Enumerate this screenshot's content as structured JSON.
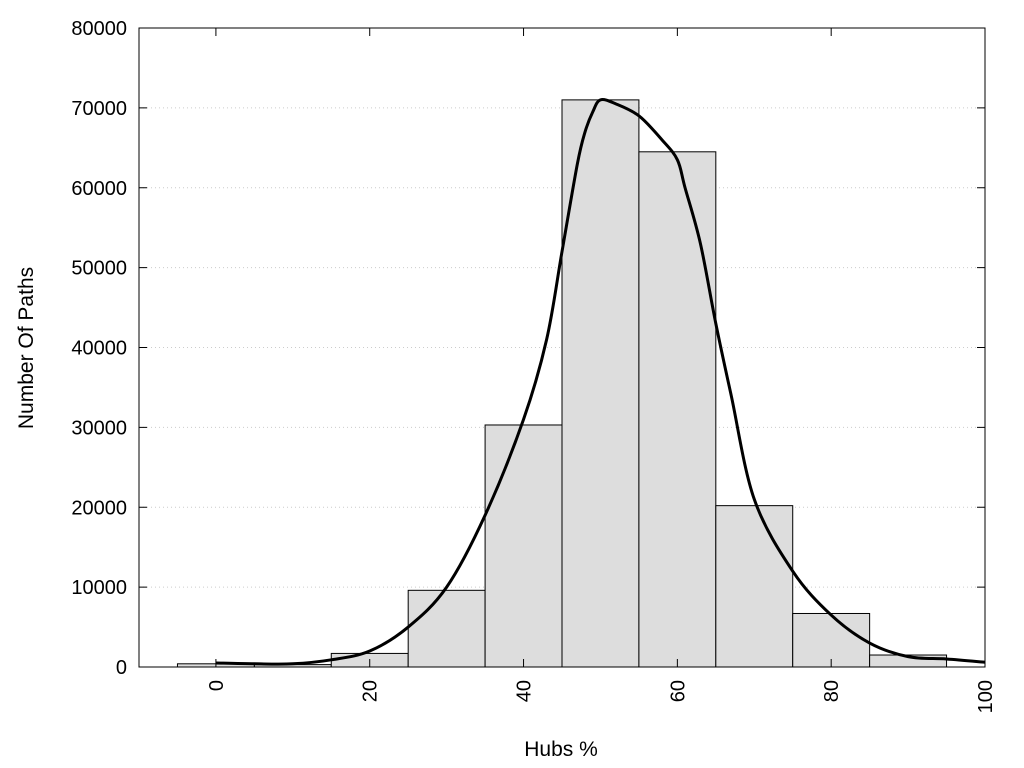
{
  "chart_data": {
    "type": "bar",
    "title": "",
    "xlabel": "Hubs %",
    "ylabel": "Number Of Paths",
    "xlim": [
      -10,
      100
    ],
    "ylim": [
      0,
      80000
    ],
    "xticks": [
      0,
      20,
      40,
      60,
      80,
      100
    ],
    "yticks": [
      0,
      10000,
      20000,
      30000,
      40000,
      50000,
      60000,
      70000,
      80000
    ],
    "grid": "horizontal dotted",
    "bin_width": 10,
    "bars": [
      {
        "x": 0,
        "value": 400
      },
      {
        "x": 10,
        "value": 300
      },
      {
        "x": 20,
        "value": 1700
      },
      {
        "x": 30,
        "value": 9600
      },
      {
        "x": 40,
        "value": 30300
      },
      {
        "x": 50,
        "value": 71000
      },
      {
        "x": 60,
        "value": 64500
      },
      {
        "x": 70,
        "value": 20200
      },
      {
        "x": 80,
        "value": 6700
      },
      {
        "x": 90,
        "value": 1500
      }
    ],
    "curve": {
      "x": [
        0,
        5,
        10,
        15,
        20,
        25,
        30,
        35,
        40,
        43,
        45,
        47,
        48,
        49,
        50,
        52,
        55,
        58,
        60,
        61,
        63,
        65,
        67,
        70,
        75,
        80,
        85,
        90,
        95,
        100
      ],
      "y": [
        500,
        400,
        400,
        900,
        2000,
        5000,
        10000,
        19000,
        31000,
        41000,
        52000,
        63000,
        67000,
        69500,
        71000,
        70500,
        69000,
        66000,
        63500,
        60000,
        53000,
        43000,
        34000,
        21000,
        12000,
        6500,
        3000,
        1300,
        1000,
        600
      ]
    },
    "colors": {
      "bar_fill": "#dddddd",
      "bar_stroke": "#000000",
      "curve": "#000000",
      "grid": "#cccccc"
    }
  }
}
